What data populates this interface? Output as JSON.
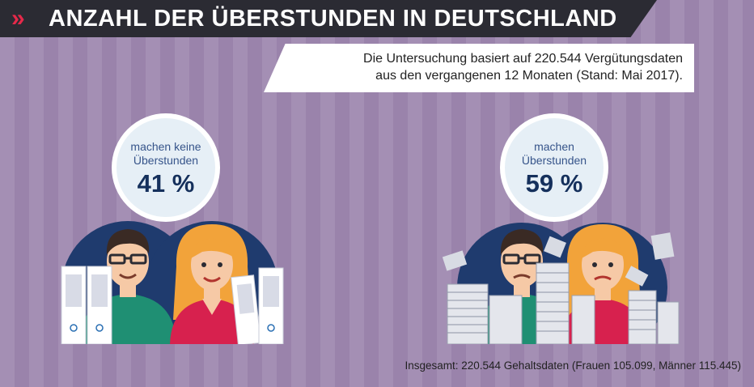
{
  "header": {
    "title": "ANZAHL DER ÜBERSTUNDEN IN DEUTSCHLAND",
    "chevron": "»"
  },
  "subtitle": {
    "line1": "Die Untersuchung basiert auf 220.544 Vergütungsdaten",
    "line2": "aus den vergangenen 12 Monaten (Stand: Mai 2017)."
  },
  "left_group": {
    "label_line1": "machen keine",
    "label_line2": "Überstunden",
    "percent": "41 %",
    "value": 41
  },
  "right_group": {
    "label_line1": "machen",
    "label_line2": "Überstunden",
    "percent": "59 %",
    "value": 59
  },
  "footer": {
    "text": "Insgesamt: 220.544 Gehaltsdaten (Frauen 105.099, Männer 115.445)"
  },
  "colors": {
    "header_bg": "#2b2b33",
    "accent": "#e5294a",
    "navy": "#1f3b6e",
    "shirt_green": "#1f8f73",
    "shirt_red": "#d7214e",
    "hair_orange": "#f2a33a",
    "skin": "#f6c9a6"
  }
}
